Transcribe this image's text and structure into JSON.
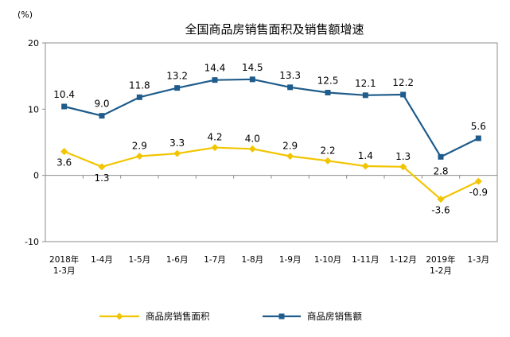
{
  "chart_data": {
    "type": "line",
    "title": "全国商品房销售面积及销售额增速",
    "ylabel": "(%)",
    "xlabel": "",
    "ylim": [
      -10,
      20
    ],
    "yticks": [
      -10,
      0,
      10,
      20
    ],
    "grid": false,
    "legend_position": "bottom",
    "categories": [
      [
        "2018年",
        "1-3月"
      ],
      [
        "1-4月"
      ],
      [
        "1-5月"
      ],
      [
        "1-6月"
      ],
      [
        "1-7月"
      ],
      [
        "1-8月"
      ],
      [
        "1-9月"
      ],
      [
        "1-10月"
      ],
      [
        "1-11月"
      ],
      [
        "1-12月"
      ],
      [
        "2019年",
        "1-2月"
      ],
      [
        "1-3月"
      ]
    ],
    "series": [
      {
        "name": "商品房销售面积",
        "color": "#f2c500",
        "marker": "diamond",
        "values": [
          3.6,
          1.3,
          2.9,
          3.3,
          4.2,
          4.0,
          2.9,
          2.2,
          1.4,
          1.3,
          -3.6,
          -0.9
        ],
        "labels": [
          "3.6",
          "1.3",
          "2.9",
          "3.3",
          "4.2",
          "4.0",
          "2.9",
          "2.2",
          "1.4",
          "1.3",
          "-3.6",
          "-0.9"
        ]
      },
      {
        "name": "商品房销售额",
        "color": "#1f5c8b",
        "marker": "square",
        "values": [
          10.4,
          9.0,
          11.8,
          13.2,
          14.4,
          14.5,
          13.3,
          12.5,
          12.1,
          12.2,
          2.8,
          5.6
        ],
        "labels": [
          "10.4",
          "9.0",
          "11.8",
          "13.2",
          "14.4",
          "14.5",
          "13.3",
          "12.5",
          "12.1",
          "12.2",
          "2.8",
          "5.6"
        ]
      }
    ]
  }
}
